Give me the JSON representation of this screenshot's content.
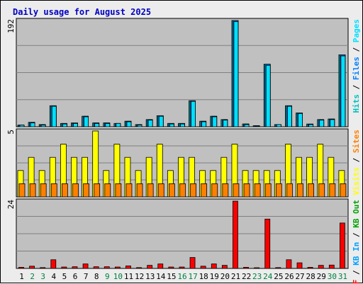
{
  "chart_data": {
    "type": "bar",
    "title": "Daily usage for August 2025",
    "colors": {
      "hits": "#00c0c0",
      "files": "#0080ff",
      "pages": "#00e0ff",
      "visits": "#ffff00",
      "sites": "#ff8000",
      "kbout": "#00a000",
      "kbin": "#00a0ff",
      "kbf": "#ff0000",
      "panel_bg": "#c0c0c0",
      "grid": "#808080",
      "label_default": "#000000",
      "label_weekend": "#008040"
    },
    "days": [
      "1",
      "2",
      "3",
      "4",
      "5",
      "6",
      "7",
      "8",
      "9",
      "10",
      "11",
      "12",
      "13",
      "14",
      "15",
      "16",
      "17",
      "18",
      "19",
      "20",
      "21",
      "22",
      "23",
      "24",
      "25",
      "26",
      "27",
      "28",
      "29",
      "30",
      "31"
    ],
    "weekend_days": [
      "2",
      "3",
      "9",
      "10",
      "16",
      "17",
      "23",
      "24",
      "30",
      "31"
    ],
    "panels": [
      {
        "id": "hits",
        "ymax": 192,
        "ymax_label": "192",
        "legend": [
          {
            "text": "Hits",
            "color": "#00c0c0"
          },
          {
            "text": " / ",
            "color": "#000000"
          },
          {
            "text": "Files",
            "color": "#0080ff"
          },
          {
            "text": " / ",
            "color": "#000000"
          },
          {
            "text": "Pages",
            "color": "#00e0ff"
          }
        ],
        "series": [
          {
            "name": "Hits",
            "color": "#00c0c0",
            "values": [
              3,
              8,
              4,
              38,
              6,
              7,
              19,
              7,
              7,
              6,
              10,
              4,
              13,
              20,
              6,
              6,
              47,
              10,
              19,
              13,
              192,
              5,
              2,
              113,
              4,
              38,
              25,
              5,
              13,
              14,
              130
            ]
          },
          {
            "name": "Files",
            "color": "#0080ff",
            "values": [
              3,
              8,
              3,
              38,
              6,
              6,
              19,
              7,
              7,
              6,
              10,
              3,
              13,
              20,
              6,
              6,
              47,
              10,
              19,
              13,
              192,
              5,
              2,
              113,
              4,
              38,
              25,
              4,
              13,
              14,
              130
            ]
          },
          {
            "name": "Pages",
            "color": "#00e0ff",
            "values": [
              3,
              7,
              3,
              37,
              5,
              6,
              18,
              6,
              6,
              6,
              9,
              3,
              12,
              19,
              5,
              5,
              46,
              9,
              18,
              12,
              190,
              4,
              1,
              111,
              4,
              37,
              24,
              4,
              12,
              13,
              128
            ]
          }
        ]
      },
      {
        "id": "visits",
        "ymax": 5,
        "ymax_label": "5",
        "legend": [
          {
            "text": "Visits",
            "color": "#ffff00"
          },
          {
            "text": " / ",
            "color": "#000000"
          },
          {
            "text": "Sites",
            "color": "#ff8000"
          }
        ],
        "series": [
          {
            "name": "Visits",
            "color": "#ffff00",
            "values": [
              2,
              3,
              2,
              3,
              4,
              3,
              3,
              5,
              2,
              4,
              3,
              2,
              3,
              4,
              2,
              3,
              3,
              2,
              2,
              3,
              4,
              2,
              2,
              2,
              2,
              4,
              3,
              3,
              4,
              3,
              2
            ]
          },
          {
            "name": "Sites",
            "color": "#ff8000",
            "values": [
              1,
              1,
              1,
              1,
              1,
              1,
              1,
              1,
              1,
              1,
              1,
              1,
              1,
              1,
              1,
              1,
              1,
              1,
              1,
              1,
              1,
              1,
              1,
              1,
              1,
              1,
              1,
              1,
              1,
              1,
              1
            ]
          }
        ]
      },
      {
        "id": "kb",
        "ymax": 24,
        "ymax_label": "24",
        "legend": [
          {
            "text": "KB F",
            "color": "#ff0000"
          },
          {
            "text": " / ",
            "color": "#000000"
          },
          {
            "text": "KB In",
            "color": "#00a0ff"
          },
          {
            "text": " / ",
            "color": "#000000"
          },
          {
            "text": "KB Out",
            "color": "#00a000"
          }
        ],
        "series": [
          {
            "name": "KB F",
            "color": "#ff0000",
            "values": [
              0.4,
              0.8,
              0.3,
              3.1,
              0.5,
              0.6,
              1.6,
              0.6,
              0.6,
              0.5,
              0.9,
              0.3,
              1.1,
              1.6,
              0.5,
              0.5,
              3.9,
              0.8,
              1.6,
              1.1,
              24,
              0.4,
              0.2,
              17.6,
              0.3,
              3.1,
              2.0,
              0.4,
              1.1,
              1.2,
              16.2
            ]
          }
        ]
      }
    ]
  }
}
